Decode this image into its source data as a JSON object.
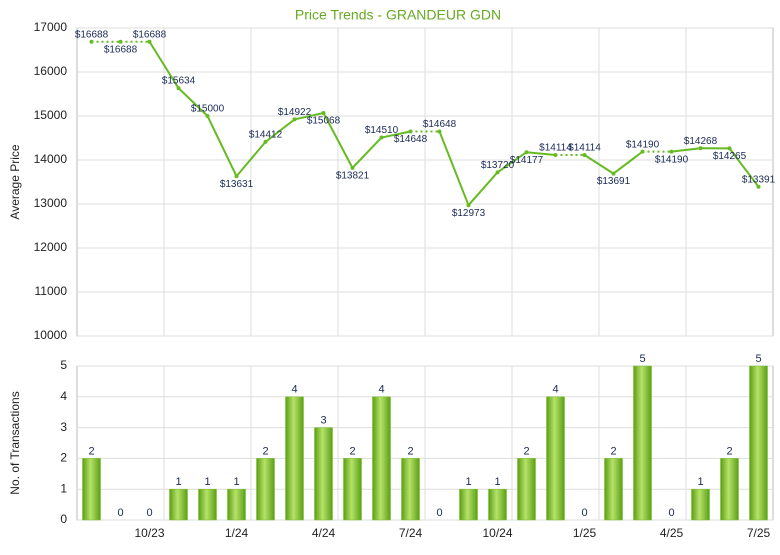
{
  "chart_data": [
    {
      "type": "line",
      "title": "Price Trends - GRANDEUR GDN",
      "ylabel": "Average Price",
      "categories": [
        null,
        null,
        "10/23",
        null,
        null,
        "1/24",
        null,
        null,
        "4/24",
        null,
        null,
        "7/24",
        null,
        null,
        "10/24",
        null,
        null,
        "1/25",
        null,
        null,
        "4/25",
        null,
        null,
        "7/25"
      ],
      "series": [
        {
          "name": "Average Price",
          "color": "#66bb22",
          "values": [
            16688,
            16688,
            16688,
            15634,
            15000,
            13631,
            14412,
            14922,
            15068,
            13821,
            14510,
            14648,
            14648,
            12973,
            13720,
            14177,
            14114,
            14114,
            13691,
            14190,
            14190,
            14268,
            14265,
            13391
          ],
          "value_labels": [
            "$16688",
            "$16688",
            "$16688",
            "$15634",
            "$15000",
            "$13631",
            "$14412",
            "$14922",
            "$15068",
            "$13821",
            "$14510",
            "$14648",
            "$14648",
            "$12973",
            "$13720",
            "$14177",
            "$14114",
            "$14114",
            "$13691",
            "$14190",
            "$14190",
            "$14268",
            "$14265",
            "$13391"
          ]
        }
      ],
      "ylim": [
        10000,
        17000
      ],
      "yticks": [
        10000,
        11000,
        12000,
        13000,
        14000,
        15000,
        16000,
        17000
      ],
      "grid": true
    },
    {
      "type": "bar",
      "ylabel": "No. of Transactions",
      "categories": [
        null,
        null,
        "10/23",
        null,
        null,
        "1/24",
        null,
        null,
        "4/24",
        null,
        null,
        "7/24",
        null,
        null,
        "10/24",
        null,
        null,
        "1/25",
        null,
        null,
        "4/25",
        null,
        null,
        "7/25"
      ],
      "values": [
        2,
        0,
        0,
        1,
        1,
        1,
        2,
        4,
        3,
        2,
        4,
        2,
        0,
        1,
        1,
        2,
        4,
        0,
        2,
        5,
        0,
        1,
        2,
        5
      ],
      "color": "#77c02a",
      "ylim": [
        0,
        5
      ],
      "yticks": [
        0,
        1,
        2,
        3,
        4,
        5
      ],
      "grid": true
    }
  ]
}
